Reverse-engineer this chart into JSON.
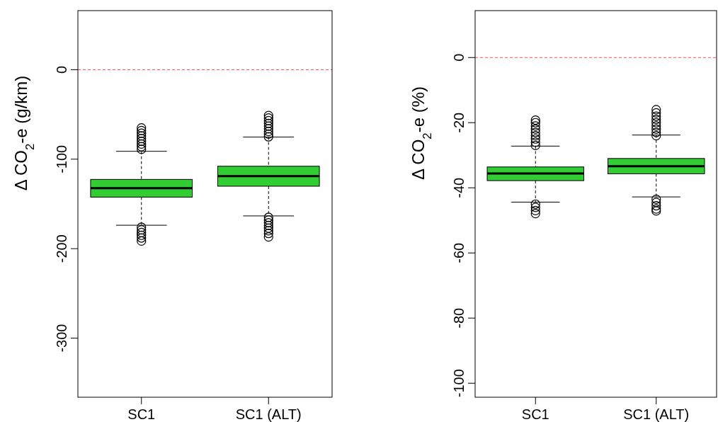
{
  "chart_data": [
    {
      "type": "box",
      "ylabel": "Δ CO$_{2}$-e (g/km)",
      "categories": [
        "SC1",
        "SC1 (ALT)"
      ],
      "ylim": [
        -366,
        66
      ],
      "yticks": [
        0,
        -100,
        -200,
        -300
      ],
      "series": [
        {
          "color": "#32cd32",
          "boxes": [
            {
              "low": -173.8,
              "q1": -142.4,
              "median": -132.3,
              "q3": -122.6,
              "high": -91.2,
              "outliers": [
                -65,
                -68,
                -71,
                -74,
                -77,
                -80,
                -83,
                -86,
                -89,
                -176,
                -179,
                -182,
                -185,
                -188,
                -191.5
              ]
            },
            {
              "low": -163.4,
              "q1": -130.2,
              "median": -118.9,
              "q3": -107.9,
              "high": -75.3,
              "outliers": [
                -51.2,
                -54,
                -57,
                -60,
                -63,
                -66,
                -69,
                -72,
                -75,
                -165,
                -168,
                -171,
                -174,
                -177,
                -180,
                -183,
                -186.9
              ]
            }
          ]
        }
      ],
      "ref_lines": [
        {
          "axis": "y",
          "value": 0,
          "color": "#ff0000",
          "line_style": "dashed"
        }
      ]
    },
    {
      "type": "box",
      "ylabel": "Δ CO$_{2}$-e (%)",
      "categories": [
        "SC1",
        "SC1 (ALT)"
      ],
      "ylim": [
        -104.3,
        14.4
      ],
      "yticks": [
        0,
        -20,
        -40,
        -60,
        -80,
        -100
      ],
      "series": [
        {
          "color": "#32cd32",
          "boxes": [
            {
              "low": -44.4,
              "q1": -37.8,
              "median": -35.6,
              "q3": -33.6,
              "high": -27.2,
              "outliers": [
                -19.2,
                -20,
                -21,
                -22,
                -23,
                -24,
                -25,
                -26,
                -27,
                -45,
                -46,
                -47,
                -47.9
              ]
            },
            {
              "low": -42.8,
              "q1": -35.7,
              "median": -33.4,
              "q3": -31,
              "high": -23.8,
              "outliers": [
                -16,
                -17,
                -18,
                -19,
                -20,
                -21,
                -22,
                -23,
                -24,
                -43.5,
                -44.5,
                -45.5,
                -46.5,
                -47.1
              ]
            }
          ]
        }
      ],
      "ref_lines": [
        {
          "axis": "y",
          "value": 0,
          "color": "#ff0000",
          "line_style": "dashed"
        }
      ]
    }
  ]
}
